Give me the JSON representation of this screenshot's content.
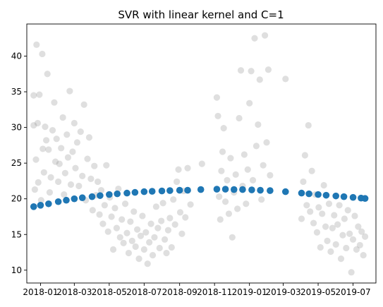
{
  "chart_data": {
    "type": "scatter",
    "title": "SVR with linear kernel and C=1",
    "xlabel": "",
    "ylabel": "",
    "x_axis_type": "date",
    "xlim": [
      "2017-12-08",
      "2019-08-10"
    ],
    "ylim": [
      8.2,
      44.5
    ],
    "x_ticks": [
      {
        "date": "2018-01-01",
        "label": "2018-01"
      },
      {
        "date": "2018-03-01",
        "label": "2018-03"
      },
      {
        "date": "2018-05-01",
        "label": "2018-05"
      },
      {
        "date": "2018-07-01",
        "label": "2018-07"
      },
      {
        "date": "2018-09-01",
        "label": "2018-09"
      },
      {
        "date": "2018-11-01",
        "label": "2018-11"
      },
      {
        "date": "2019-01-01",
        "label": "2019-01"
      },
      {
        "date": "2019-03-01",
        "label": "2019-03"
      },
      {
        "date": "2019-05-01",
        "label": "2019-05"
      },
      {
        "date": "2019-07-01",
        "label": "2019-07"
      }
    ],
    "y_ticks": [
      10,
      15,
      20,
      25,
      30,
      35,
      40
    ],
    "grid": false,
    "legend": "none",
    "colors": {
      "observed": "#808080",
      "predicted": "#1f77b4"
    },
    "series": [
      {
        "role": "observed",
        "marker": "circle",
        "opacity": 0.25,
        "points": [
          [
            "2017-12-20",
            30.3
          ],
          [
            "2017-12-20",
            34.5
          ],
          [
            "2017-12-22",
            21.3
          ],
          [
            "2017-12-24",
            25.5
          ],
          [
            "2017-12-25",
            41.6
          ],
          [
            "2017-12-27",
            30.6
          ],
          [
            "2017-12-28",
            22.3
          ],
          [
            "2017-12-30",
            34.6
          ],
          [
            "2018-01-02",
            19.8
          ],
          [
            "2018-01-04",
            40.3
          ],
          [
            "2018-01-05",
            27.0
          ],
          [
            "2018-01-07",
            23.7
          ],
          [
            "2018-01-09",
            30.1
          ],
          [
            "2018-01-11",
            28.2
          ],
          [
            "2018-01-13",
            37.5
          ],
          [
            "2018-01-15",
            26.9
          ],
          [
            "2018-01-17",
            20.9
          ],
          [
            "2018-01-19",
            23.0
          ],
          [
            "2018-01-22",
            29.6
          ],
          [
            "2018-01-25",
            33.5
          ],
          [
            "2018-01-27",
            25.2
          ],
          [
            "2018-01-29",
            28.4
          ],
          [
            "2018-02-01",
            22.4
          ],
          [
            "2018-02-03",
            24.9
          ],
          [
            "2018-02-06",
            27.1
          ],
          [
            "2018-02-09",
            31.4
          ],
          [
            "2018-02-11",
            20.6
          ],
          [
            "2018-02-13",
            23.6
          ],
          [
            "2018-02-16",
            29.0
          ],
          [
            "2018-02-18",
            25.8
          ],
          [
            "2018-02-21",
            35.1
          ],
          [
            "2018-02-23",
            22.0
          ],
          [
            "2018-02-26",
            26.6
          ],
          [
            "2018-03-01",
            30.6
          ],
          [
            "2018-03-03",
            24.3
          ],
          [
            "2018-03-06",
            27.9
          ],
          [
            "2018-03-09",
            21.8
          ],
          [
            "2018-03-12",
            29.4
          ],
          [
            "2018-03-15",
            23.2
          ],
          [
            "2018-03-18",
            33.2
          ],
          [
            "2018-03-21",
            19.8
          ],
          [
            "2018-03-24",
            25.6
          ],
          [
            "2018-03-27",
            28.6
          ],
          [
            "2018-03-30",
            22.8
          ],
          [
            "2018-04-02",
            18.4
          ],
          [
            "2018-04-05",
            24.6
          ],
          [
            "2018-04-08",
            20.5
          ],
          [
            "2018-04-11",
            22.4
          ],
          [
            "2018-04-14",
            17.8
          ],
          [
            "2018-04-17",
            21.2
          ],
          [
            "2018-04-20",
            16.5
          ],
          [
            "2018-04-23",
            19.1
          ],
          [
            "2018-04-26",
            24.7
          ],
          [
            "2018-04-29",
            15.4
          ],
          [
            "2018-05-02",
            20.2
          ],
          [
            "2018-05-05",
            17.5
          ],
          [
            "2018-05-08",
            12.9
          ],
          [
            "2018-05-11",
            18.7
          ],
          [
            "2018-05-14",
            15.9
          ],
          [
            "2018-05-17",
            21.4
          ],
          [
            "2018-05-20",
            14.6
          ],
          [
            "2018-05-23",
            17.1
          ],
          [
            "2018-05-26",
            13.8
          ],
          [
            "2018-05-29",
            19.3
          ],
          [
            "2018-06-01",
            15.2
          ],
          [
            "2018-06-04",
            12.4
          ],
          [
            "2018-06-07",
            16.8
          ],
          [
            "2018-06-10",
            14.1
          ],
          [
            "2018-06-13",
            18.2
          ],
          [
            "2018-06-16",
            13.3
          ],
          [
            "2018-06-19",
            15.7
          ],
          [
            "2018-06-22",
            11.6
          ],
          [
            "2018-06-25",
            14.8
          ],
          [
            "2018-06-28",
            17.6
          ],
          [
            "2018-07-01",
            12.9
          ],
          [
            "2018-07-04",
            15.3
          ],
          [
            "2018-07-07",
            10.9
          ],
          [
            "2018-07-10",
            13.9
          ],
          [
            "2018-07-13",
            16.5
          ],
          [
            "2018-07-16",
            12.1
          ],
          [
            "2018-07-19",
            14.6
          ],
          [
            "2018-07-22",
            18.9
          ],
          [
            "2018-07-25",
            15.9
          ],
          [
            "2018-07-28",
            13.1
          ],
          [
            "2018-07-31",
            16.9
          ],
          [
            "2018-08-03",
            19.4
          ],
          [
            "2018-08-06",
            14.3
          ],
          [
            "2018-08-09",
            12.4
          ],
          [
            "2018-08-12",
            15.6
          ],
          [
            "2018-08-15",
            17.3
          ],
          [
            "2018-08-18",
            13.2
          ],
          [
            "2018-08-21",
            19.9
          ],
          [
            "2018-08-24",
            16.4
          ],
          [
            "2018-08-27",
            22.4
          ],
          [
            "2018-08-30",
            24.1
          ],
          [
            "2018-09-02",
            18.1
          ],
          [
            "2018-09-05",
            15.1
          ],
          [
            "2018-09-08",
            21.1
          ],
          [
            "2018-09-11",
            17.4
          ],
          [
            "2018-09-15",
            24.3
          ],
          [
            "2018-09-20",
            19.2
          ],
          [
            "2018-10-10",
            24.9
          ],
          [
            "2018-11-05",
            34.2
          ],
          [
            "2018-11-07",
            31.6
          ],
          [
            "2018-11-09",
            20.3
          ],
          [
            "2018-11-11",
            17.1
          ],
          [
            "2018-11-13",
            23.9
          ],
          [
            "2018-11-15",
            26.6
          ],
          [
            "2018-11-17",
            29.9
          ],
          [
            "2018-11-20",
            19.6
          ],
          [
            "2018-11-23",
            22.6
          ],
          [
            "2018-11-26",
            17.9
          ],
          [
            "2018-11-29",
            25.7
          ],
          [
            "2018-12-02",
            14.6
          ],
          [
            "2018-12-05",
            20.9
          ],
          [
            "2018-12-08",
            23.4
          ],
          [
            "2018-12-11",
            18.6
          ],
          [
            "2018-12-14",
            31.3
          ],
          [
            "2018-12-17",
            38.0
          ],
          [
            "2018-12-20",
            21.8
          ],
          [
            "2018-12-23",
            26.2
          ],
          [
            "2018-12-26",
            19.3
          ],
          [
            "2018-12-29",
            24.1
          ],
          [
            "2019-01-01",
            33.4
          ],
          [
            "2019-01-04",
            37.9
          ],
          [
            "2019-01-07",
            22.6
          ],
          [
            "2019-01-10",
            42.5
          ],
          [
            "2019-01-13",
            27.4
          ],
          [
            "2019-01-16",
            30.4
          ],
          [
            "2019-01-19",
            36.7
          ],
          [
            "2019-01-22",
            19.9
          ],
          [
            "2019-01-25",
            24.7
          ],
          [
            "2019-01-28",
            42.9
          ],
          [
            "2019-01-31",
            27.9
          ],
          [
            "2019-02-03",
            38.1
          ],
          [
            "2019-02-06",
            23.3
          ],
          [
            "2019-03-05",
            36.8
          ],
          [
            "2019-04-02",
            17.2
          ],
          [
            "2019-04-05",
            22.4
          ],
          [
            "2019-04-08",
            26.1
          ],
          [
            "2019-04-11",
            19.1
          ],
          [
            "2019-04-14",
            30.3
          ],
          [
            "2019-04-17",
            18.2
          ],
          [
            "2019-04-20",
            23.9
          ],
          [
            "2019-04-23",
            16.6
          ],
          [
            "2019-04-26",
            20.6
          ],
          [
            "2019-04-29",
            15.3
          ],
          [
            "2019-05-02",
            18.8
          ],
          [
            "2019-05-05",
            13.2
          ],
          [
            "2019-05-08",
            17.9
          ],
          [
            "2019-05-11",
            21.9
          ],
          [
            "2019-05-14",
            16.1
          ],
          [
            "2019-05-17",
            14.1
          ],
          [
            "2019-05-20",
            19.3
          ],
          [
            "2019-05-23",
            12.6
          ],
          [
            "2019-05-26",
            15.9
          ],
          [
            "2019-05-29",
            17.7
          ],
          [
            "2019-06-01",
            13.6
          ],
          [
            "2019-06-04",
            16.4
          ],
          [
            "2019-06-07",
            19.1
          ],
          [
            "2019-06-10",
            11.6
          ],
          [
            "2019-06-13",
            14.9
          ],
          [
            "2019-06-16",
            17.2
          ],
          [
            "2019-06-19",
            13.1
          ],
          [
            "2019-06-22",
            18.4
          ],
          [
            "2019-06-25",
            15.1
          ],
          [
            "2019-06-28",
            9.7
          ],
          [
            "2019-07-01",
            14.3
          ],
          [
            "2019-07-04",
            17.6
          ],
          [
            "2019-07-07",
            12.9
          ],
          [
            "2019-07-10",
            16.1
          ],
          [
            "2019-07-13",
            13.5
          ],
          [
            "2019-07-16",
            15.4
          ],
          [
            "2019-07-19",
            12.1
          ],
          [
            "2019-07-22",
            14.7
          ]
        ]
      },
      {
        "role": "predicted",
        "marker": "circle",
        "opacity": 1.0,
        "points": [
          [
            "2017-12-20",
            18.9
          ],
          [
            "2018-01-01",
            19.1
          ],
          [
            "2018-01-15",
            19.3
          ],
          [
            "2018-02-01",
            19.6
          ],
          [
            "2018-02-15",
            19.8
          ],
          [
            "2018-03-01",
            20.0
          ],
          [
            "2018-03-15",
            20.15
          ],
          [
            "2018-04-01",
            20.3
          ],
          [
            "2018-04-15",
            20.45
          ],
          [
            "2018-05-01",
            20.6
          ],
          [
            "2018-05-15",
            20.7
          ],
          [
            "2018-06-01",
            20.8
          ],
          [
            "2018-06-15",
            20.9
          ],
          [
            "2018-07-01",
            21.0
          ],
          [
            "2018-07-15",
            21.05
          ],
          [
            "2018-08-01",
            21.1
          ],
          [
            "2018-08-15",
            21.15
          ],
          [
            "2018-09-01",
            21.2
          ],
          [
            "2018-09-15",
            21.2
          ],
          [
            "2018-10-08",
            21.3
          ],
          [
            "2018-11-05",
            21.35
          ],
          [
            "2018-11-20",
            21.35
          ],
          [
            "2018-12-05",
            21.3
          ],
          [
            "2018-12-20",
            21.3
          ],
          [
            "2019-01-05",
            21.25
          ],
          [
            "2019-01-20",
            21.2
          ],
          [
            "2019-02-06",
            21.15
          ],
          [
            "2019-03-05",
            21.0
          ],
          [
            "2019-04-02",
            20.8
          ],
          [
            "2019-04-15",
            20.7
          ],
          [
            "2019-05-01",
            20.6
          ],
          [
            "2019-05-15",
            20.5
          ],
          [
            "2019-06-01",
            20.4
          ],
          [
            "2019-06-15",
            20.3
          ],
          [
            "2019-07-01",
            20.2
          ],
          [
            "2019-07-15",
            20.1
          ],
          [
            "2019-07-22",
            20.05
          ]
        ]
      }
    ]
  }
}
